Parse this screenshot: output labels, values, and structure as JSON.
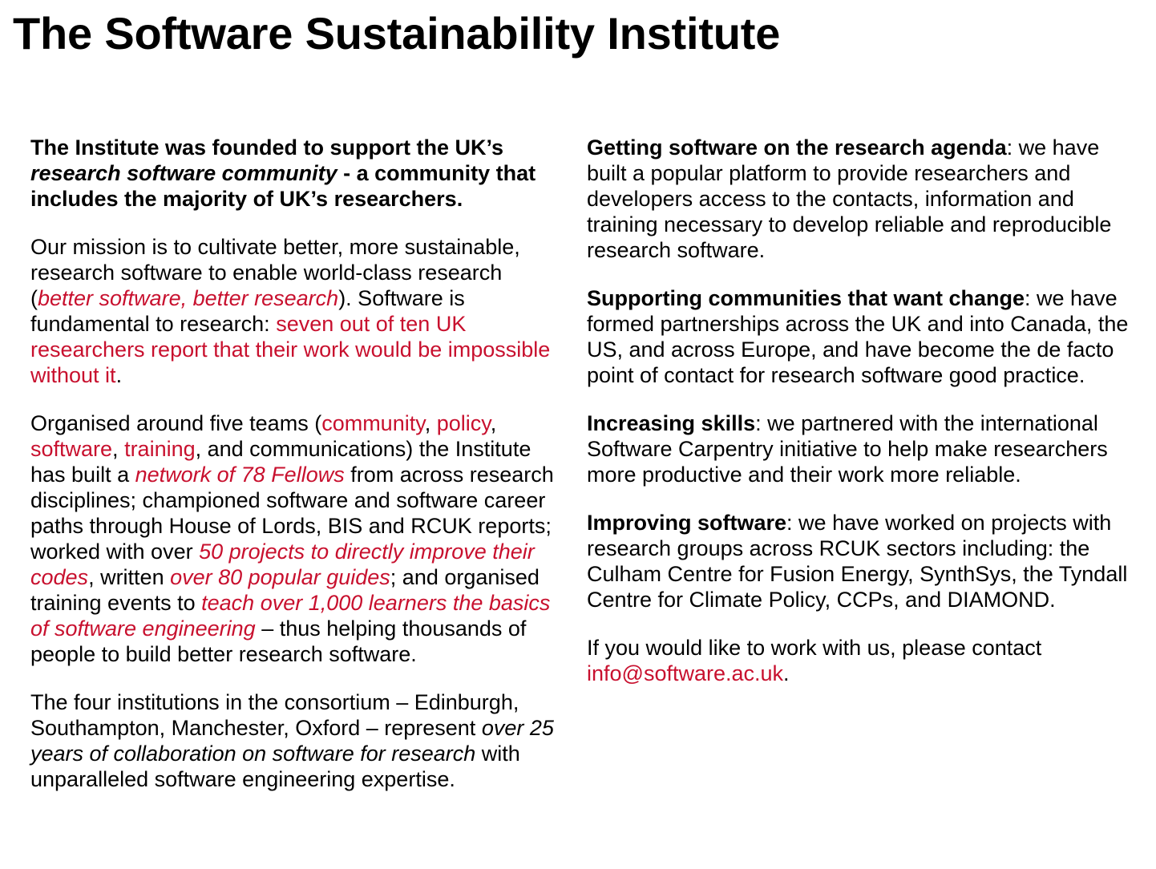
{
  "title": "The Software Sustainability Institute",
  "left": {
    "p1": {
      "t1": "The Institute was founded to support the UK’s ",
      "t2": "research software community",
      "t3": " - a community that includes the majority of UK’s researchers."
    },
    "p2": {
      "t1": "Our mission is to cultivate better, more sustainable, research software to enable world-class research (",
      "link1": "better software, better research",
      "t2": "). Software is fundamental to research: ",
      "link2": "seven out of ten UK researchers report that their work would be impossible without it",
      "t3": "."
    },
    "p3": {
      "t1": "Organised around five teams (",
      "link_community": "community",
      "sep1": ", ",
      "link_policy": "policy",
      "sep2": ", ",
      "link_software": "software",
      "sep3": ", ",
      "link_training": "training",
      "t2": ", and communications) the Institute has built a ",
      "link_fellows": "network of 78 Fellows",
      "t3": " from across research disciplines; championed software and software career paths through House of Lords, BIS and RCUK reports; worked with over ",
      "link_projects": "50 projects to directly improve their codes",
      "t4": ", written ",
      "link_guides": "over 80 popular guides",
      "t5": "; and organised training events to ",
      "link_learners": "teach over 1,000 learners the basics of software engineering",
      "t6": " – thus helping thousands of people to build better research software."
    },
    "p4": {
      "t1": "The four institutions in the consortium – Edinburgh, Southampton, Manchester, Oxford – represent ",
      "t2": "over 25 years of collaboration on software for research",
      "t3": " with unparalleled software engineering expertise."
    }
  },
  "right": {
    "p1": {
      "heading": "Getting software on the research agenda",
      "body": ": we have built a popular platform to provide researchers and developers access to the contacts, information and training necessary to develop reliable and reproducible research software."
    },
    "p2": {
      "heading": "Supporting communities that want change",
      "body": ": we have formed partnerships across the UK and into Canada, the US, and across Europe, and have become the de facto point of contact for research software good practice."
    },
    "p3": {
      "heading": "Increasing skills",
      "body": ": we partnered with the international Software Carpentry initiative to help make researchers more productive and their work more reliable."
    },
    "p4": {
      "heading": "Improving software",
      "body": ": we have worked on projects with research groups across RCUK sectors including: the Culham Centre for Fusion Energy, SynthSys, the Tyndall Centre for Climate Policy, CCPs, and DIAMOND."
    },
    "p5": {
      "t1": "If you would like to work with us, please contact ",
      "email": "info@software.ac.uk",
      "t2": "."
    }
  },
  "colors": {
    "link": "#c8102e",
    "text": "#000000",
    "background": "#ffffff"
  }
}
